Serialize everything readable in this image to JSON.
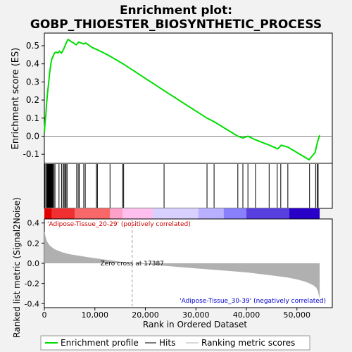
{
  "chart_data": {
    "type": "line",
    "title_line1": "Enrichment plot:",
    "title_line2": "GOBP_THIOESTER_BIOSYNTHETIC_PROCESS",
    "es_panel": {
      "ylabel": "Enrichment score (ES)",
      "ylim": [
        -0.15,
        0.57
      ],
      "yticks": [
        -0.1,
        0.0,
        0.1,
        0.2,
        0.3,
        0.4,
        0.5
      ],
      "ytick_labels": [
        "-0.1",
        "0.0",
        "0.1",
        "0.2",
        "0.3",
        "0.4",
        "0.5"
      ],
      "series": [
        {
          "name": "Enrichment profile",
          "color": "#00dd00",
          "x": [
            0,
            150,
            300,
            450,
            600,
            750,
            900,
            1050,
            1200,
            1350,
            1500,
            1700,
            2000,
            2300,
            2700,
            3000,
            3400,
            3800,
            4100,
            4400,
            4700,
            5200,
            5800,
            6300,
            6800,
            7300,
            7800,
            8200,
            9500,
            10300,
            10700,
            12500,
            15600,
            23800,
            32200,
            33600,
            38300,
            39300,
            40300,
            41800,
            44600,
            46200,
            46900,
            48200,
            52400,
            53600,
            54000,
            54200,
            54500
          ],
          "y": [
            0.02,
            0.08,
            0.12,
            0.18,
            0.23,
            0.27,
            0.31,
            0.35,
            0.38,
            0.41,
            0.43,
            0.44,
            0.46,
            0.465,
            0.46,
            0.47,
            0.46,
            0.48,
            0.5,
            0.52,
            0.535,
            0.525,
            0.515,
            0.505,
            0.52,
            0.515,
            0.51,
            0.515,
            0.49,
            0.48,
            0.475,
            0.45,
            0.4,
            0.25,
            0.1,
            0.08,
            0.0,
            -0.01,
            0.0,
            -0.02,
            -0.05,
            -0.07,
            -0.05,
            -0.06,
            -0.13,
            -0.09,
            -0.04,
            -0.02,
            0.005
          ]
        }
      ]
    },
    "hits": {
      "color": "#000000",
      "positions": [
        100,
        300,
        500,
        600,
        700,
        800,
        900,
        950,
        1000,
        1100,
        1150,
        1200,
        1250,
        1300,
        1400,
        1500,
        1600,
        1700,
        1900,
        2100,
        2900,
        3400,
        3700,
        3900,
        4100,
        4300,
        4500,
        6400,
        6700,
        6900,
        7800,
        8100,
        10300,
        10500,
        13000,
        15500,
        15700,
        23700,
        32200,
        33600,
        38300,
        39300,
        40300,
        41800,
        44500,
        46100,
        46800,
        48200,
        52500,
        53700,
        54000,
        54200
      ]
    },
    "ranking_panel": {
      "ylabel": "Ranked list metric (Signal2Noise)",
      "xlabel": "Rank in Ordered Dataset",
      "ylim": [
        -0.44,
        0.44
      ],
      "yticks": [
        -0.4,
        -0.2,
        0.0,
        0.2,
        0.4
      ],
      "ytick_labels": [
        "-0.4",
        "-0.2",
        "0.0",
        "0.2",
        "0.4"
      ],
      "xlim": [
        0,
        57000
      ],
      "xticks": [
        0,
        10000,
        20000,
        30000,
        40000,
        50000
      ],
      "xtick_labels": [
        "0",
        "10,000",
        "20,000",
        "30,000",
        "40,000",
        "50,000"
      ],
      "zero_cross": 17387,
      "zero_cross_label": "Zero cross at 17387",
      "fill_color": "#b0b0b0",
      "curve_x": [
        0,
        200,
        500,
        1000,
        2000,
        3500,
        5000,
        7500,
        10000,
        13000,
        17387,
        20000,
        25000,
        30000,
        35000,
        40000,
        45000,
        48000,
        50000,
        51500,
        52500,
        53300,
        53800,
        54100,
        54300,
        54500
      ],
      "curve_y": [
        0.32,
        0.27,
        0.22,
        0.18,
        0.14,
        0.11,
        0.09,
        0.07,
        0.05,
        0.03,
        0.0,
        -0.01,
        -0.03,
        -0.05,
        -0.07,
        -0.09,
        -0.12,
        -0.14,
        -0.16,
        -0.18,
        -0.2,
        -0.22,
        -0.24,
        -0.27,
        -0.31,
        -0.35
      ],
      "positive_label": "'Adipose-Tissue_20-29' (positively correlated)",
      "negative_label": "'Adipose-Tissue_30-39' (negatively correlated)",
      "positive_label_color": "#cc0000",
      "negative_label_color": "#0000cc"
    },
    "color_bar": [
      {
        "from": 0,
        "to": 1500,
        "color": "#e00000"
      },
      {
        "from": 1500,
        "to": 6000,
        "color": "#f03030"
      },
      {
        "from": 6000,
        "to": 13000,
        "color": "#f86868"
      },
      {
        "from": 13000,
        "to": 15500,
        "color": "#ffa0c8"
      },
      {
        "from": 15500,
        "to": 21500,
        "color": "#ffc0f0"
      },
      {
        "from": 21500,
        "to": 30500,
        "color": "#d8d0ff"
      },
      {
        "from": 30500,
        "to": 35500,
        "color": "#b8b0ff"
      },
      {
        "from": 35500,
        "to": 40000,
        "color": "#8880ff"
      },
      {
        "from": 40000,
        "to": 48500,
        "color": "#5840e0"
      },
      {
        "from": 48500,
        "to": 54500,
        "color": "#2800c8"
      }
    ],
    "legend": [
      {
        "label": "Enrichment profile",
        "color": "#00dd00"
      },
      {
        "label": "Hits",
        "color": "#000000"
      },
      {
        "label": "Ranking metric scores",
        "color": "#b0b0b0"
      }
    ]
  }
}
